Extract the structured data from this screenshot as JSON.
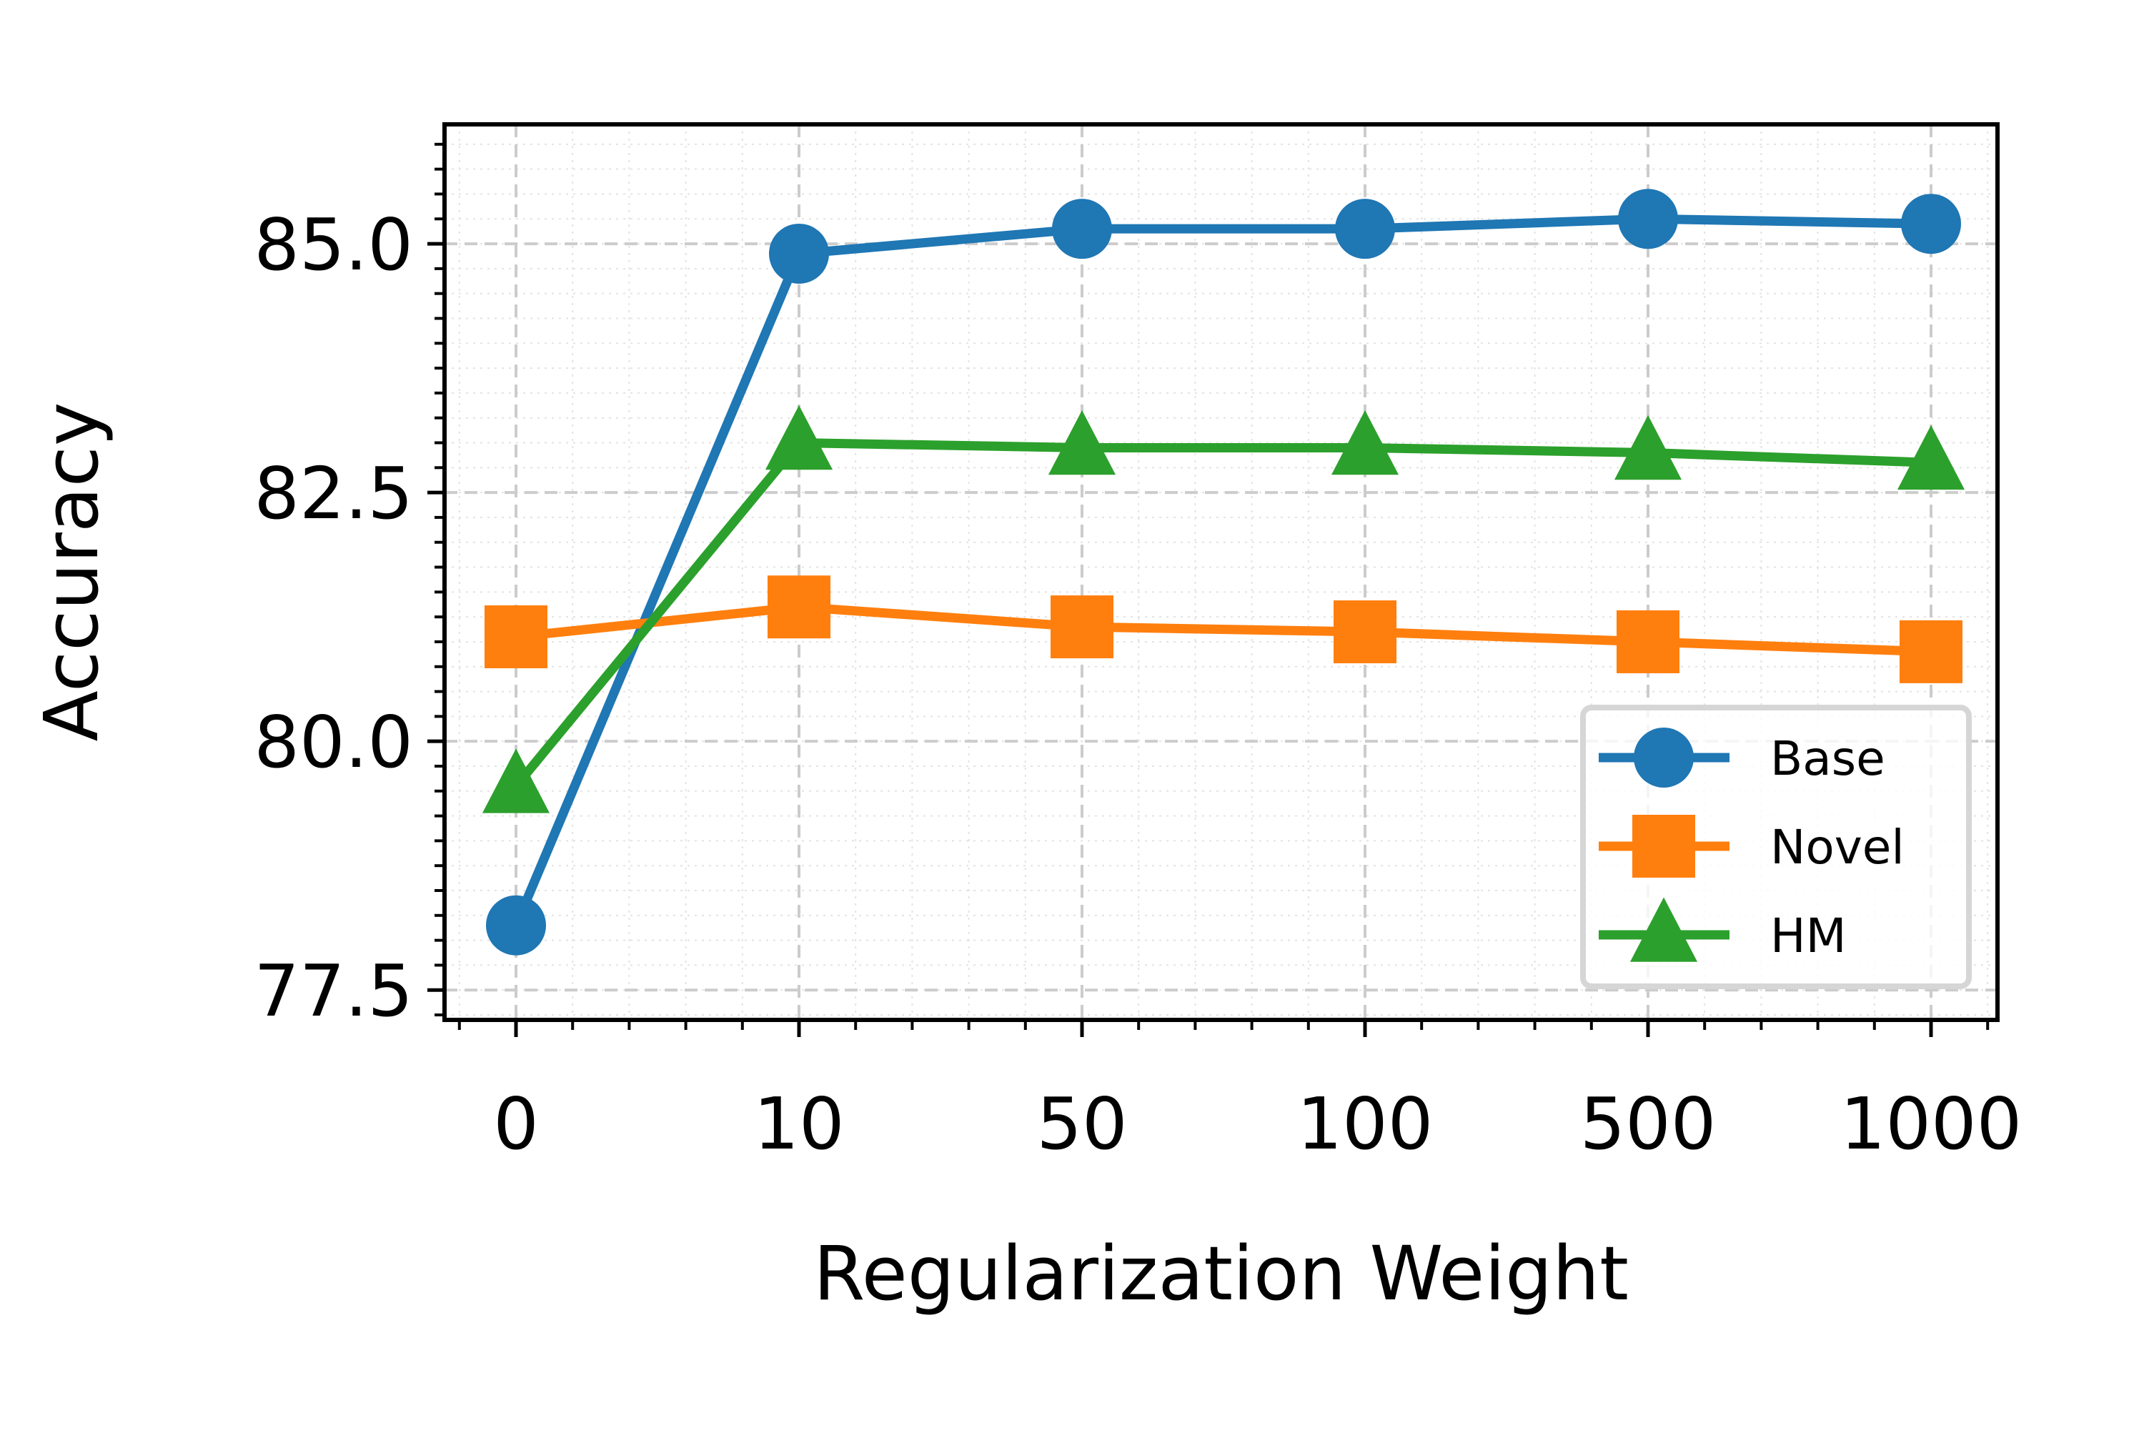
{
  "chart_data": {
    "type": "line",
    "title": "",
    "xlabel": "Regularization Weight",
    "ylabel": "Accuracy",
    "categories": [
      "0",
      "10",
      "50",
      "100",
      "500",
      "1000"
    ],
    "ylim": [
      77.2,
      86.2
    ],
    "yticks": [
      "77.5",
      "80.0",
      "82.5",
      "85.0"
    ],
    "grid": true,
    "legend_position": "lower-right",
    "series": [
      {
        "name": "Base",
        "color": "#1f77b4",
        "marker": "circle",
        "values": [
          78.15,
          84.9,
          85.15,
          85.15,
          85.25,
          85.2
        ]
      },
      {
        "name": "Novel",
        "color": "#ff7f0e",
        "marker": "square",
        "values": [
          81.05,
          81.35,
          81.15,
          81.1,
          81.0,
          80.9
        ]
      },
      {
        "name": "HM",
        "color": "#2ca02c",
        "marker": "triangle",
        "values": [
          79.55,
          83.0,
          82.95,
          82.95,
          82.9,
          82.8
        ]
      }
    ]
  }
}
